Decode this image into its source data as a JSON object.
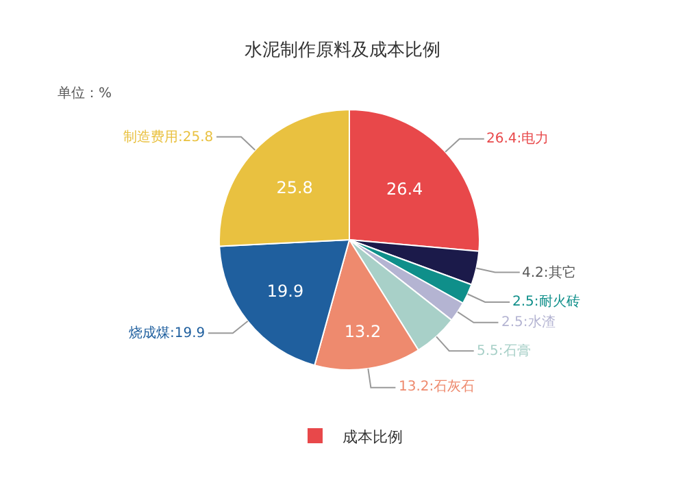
{
  "chart_data": {
    "type": "pie",
    "title": "水泥制作原料及成本比例",
    "annotations": [
      "单位：%"
    ],
    "legend": "bottom",
    "categories": [
      "26.4:电力",
      "4.2:其它",
      "2.5:耐火砖",
      "2.5:水渣",
      "5.5:石膏",
      "13.2:石灰石",
      "烧成煤:19.9",
      "制造费用:25.8"
    ],
    "colors": [
      "#e8484a",
      "#1b1a4a",
      "#0f8f8a",
      "#b4b4d2",
      "#a8d0c8",
      "#ee8a6e",
      "#1f5f9e",
      "#e9c140"
    ],
    "series": [
      {
        "name": "成本比例",
        "color": "#e8484a",
        "values": [
          26.4,
          4.2,
          2.5,
          2.5,
          5.5,
          13.2,
          19.9,
          25.8
        ]
      }
    ],
    "value_labels": [
      "26.4",
      null,
      null,
      null,
      null,
      "13.2",
      "19.9",
      "25.8"
    ]
  }
}
